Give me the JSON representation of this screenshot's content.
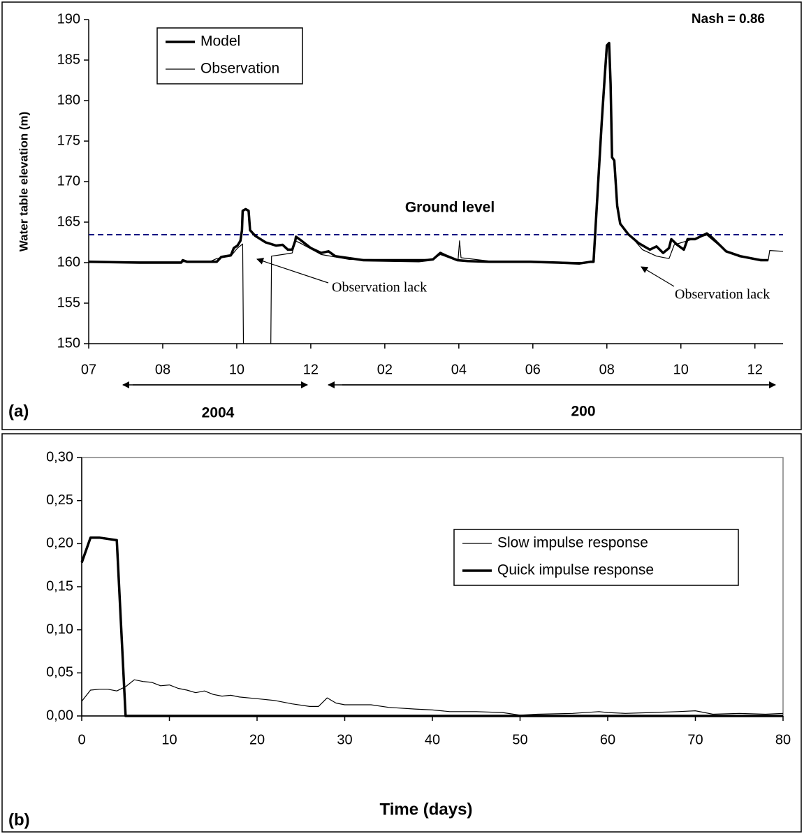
{
  "chart_data": [
    {
      "type": "line",
      "ylabel": "Water table elevation (m)",
      "ylim": [
        150,
        190
      ],
      "yticks": [
        150,
        155,
        160,
        165,
        170,
        175,
        180,
        185,
        190
      ],
      "xlim": [
        0,
        9.38
      ],
      "xticks": [
        {
          "value": 0,
          "label": "07"
        },
        {
          "value": 1,
          "label": "08"
        },
        {
          "value": 2,
          "label": "10"
        },
        {
          "value": 3,
          "label": "12"
        },
        {
          "value": 4,
          "label": "02"
        },
        {
          "value": 5,
          "label": "04"
        },
        {
          "value": 6,
          "label": "06"
        },
        {
          "value": 7,
          "label": "08"
        },
        {
          "value": 8,
          "label": "10"
        },
        {
          "value": 9,
          "label": "12"
        }
      ],
      "legend": "upper left",
      "frame": false,
      "series": [
        {
          "name": "Model",
          "color": "#000000",
          "line_style": "thick",
          "x": [
            0,
            0.69,
            1.25,
            1.27,
            1.33,
            1.73,
            1.79,
            1.92,
            1.96,
            2.01,
            2.05,
            2.07,
            2.08,
            2.12,
            2.16,
            2.18,
            2.25,
            2.39,
            2.53,
            2.62,
            2.69,
            2.75,
            2.79,
            2.8,
            2.86,
            3.0,
            3.14,
            3.24,
            3.33,
            3.71,
            4.46,
            4.65,
            4.75,
            4.82,
            4.98,
            5.12,
            5.41,
            5.97,
            6.35,
            6.63,
            6.78,
            6.82,
            6.93,
            6.97,
            7.0,
            7.03,
            7.05,
            7.07,
            7.1,
            7.14,
            7.18,
            7.29,
            7.43,
            7.58,
            7.67,
            7.76,
            7.84,
            7.87,
            7.95,
            8.04,
            8.09,
            8.19,
            8.35,
            8.42,
            8.61,
            8.8,
            9.08,
            9.18
          ],
          "values": [
            160.1,
            160.0,
            160.0,
            160.3,
            160.1,
            160.1,
            160.7,
            160.9,
            161.8,
            162.1,
            162.7,
            164.0,
            166.4,
            166.6,
            166.4,
            164.0,
            163.3,
            162.5,
            162.1,
            162.2,
            161.6,
            161.6,
            162.7,
            163.2,
            162.8,
            161.8,
            161.2,
            161.4,
            160.8,
            160.3,
            160.2,
            160.4,
            161.2,
            160.9,
            160.3,
            160.2,
            160.1,
            160.1,
            160.0,
            159.9,
            160.1,
            160.1,
            177.3,
            182.8,
            186.8,
            187.1,
            182.1,
            173.0,
            172.6,
            167.0,
            164.8,
            163.5,
            162.4,
            161.6,
            162.0,
            161.2,
            161.8,
            162.9,
            162.2,
            161.6,
            162.9,
            162.9,
            163.6,
            163.1,
            161.4,
            160.8,
            160.3,
            160.3
          ]
        },
        {
          "name": "Observation",
          "color": "#000000",
          "line_style": "thin",
          "x": [
            0,
            1.63,
            1.73,
            1.92,
            2.01,
            2.08,
            2.09,
            null,
            2.46,
            2.47,
            2.62,
            2.75,
            2.79,
            2.86,
            3.14,
            3.52,
            4.65,
            4.75,
            4.93,
            4.99,
            5.01,
            5.03,
            5.41,
            6.82,
            null,
            7.34,
            7.48,
            7.67,
            7.84,
            7.91,
            8.09,
            8.35,
            8.61,
            8.8,
            9.18,
            9.2,
            9.38
          ],
          "values": [
            160.1,
            160.1,
            160.5,
            160.8,
            161.8,
            162.3,
            150,
            null,
            150,
            160.8,
            161.0,
            161.2,
            162.7,
            162.4,
            161.0,
            160.4,
            160.4,
            161.0,
            160.4,
            160.4,
            162.7,
            160.6,
            160.2,
            160.0,
            null,
            163.1,
            161.6,
            160.8,
            160.5,
            162.2,
            162.7,
            163.4,
            161.4,
            160.7,
            160.3,
            161.5,
            161.4
          ]
        }
      ],
      "reference_line": {
        "value": 163.45,
        "label": "Ground level",
        "color": "#000080",
        "style": "dashed"
      },
      "annotations": {
        "nash": "Nash = 0.86",
        "lack": [
          "Observation lack",
          "Observation lack"
        ],
        "panel": "(a)",
        "years": [
          "2004",
          "200"
        ]
      }
    },
    {
      "type": "line",
      "xlabel": "Time (days)",
      "ylim": [
        0,
        0.3
      ],
      "yticks": [
        {
          "value": 0,
          "label": "0,00"
        },
        {
          "value": 0.05,
          "label": "0,05"
        },
        {
          "value": 0.1,
          "label": "0,10"
        },
        {
          "value": 0.15,
          "label": "0,15"
        },
        {
          "value": 0.2,
          "label": "0,20"
        },
        {
          "value": 0.25,
          "label": "0,25"
        },
        {
          "value": 0.3,
          "label": "0,30"
        }
      ],
      "xlim": [
        0,
        80
      ],
      "xticks": [
        0,
        10,
        20,
        30,
        40,
        50,
        60,
        70,
        80
      ],
      "legend": "right",
      "frame": true,
      "series": [
        {
          "name": "Slow impulse response",
          "color": "#000000",
          "line_style": "thin",
          "x": [
            0,
            1,
            2,
            3,
            4,
            5,
            6,
            7,
            8,
            9,
            10,
            11,
            12,
            13,
            14,
            15,
            16,
            17,
            18,
            20,
            22,
            24,
            26,
            27,
            28,
            29,
            30,
            33,
            35,
            38,
            40,
            42,
            45,
            48,
            50,
            52,
            56,
            59,
            60,
            62,
            65,
            68,
            70,
            72,
            75,
            78,
            80
          ],
          "values": [
            0.017,
            0.03,
            0.031,
            0.031,
            0.029,
            0.034,
            0.042,
            0.04,
            0.039,
            0.035,
            0.036,
            0.032,
            0.03,
            0.027,
            0.029,
            0.025,
            0.023,
            0.024,
            0.022,
            0.02,
            0.018,
            0.014,
            0.011,
            0.011,
            0.021,
            0.015,
            0.013,
            0.013,
            0.01,
            0.008,
            0.007,
            0.005,
            0.005,
            0.004,
            0.001,
            0.002,
            0.003,
            0.005,
            0.004,
            0.003,
            0.004,
            0.005,
            0.006,
            0.002,
            0.003,
            0.002,
            0.003
          ]
        },
        {
          "name": "Quick impulse response",
          "color": "#000000",
          "line_style": "thick",
          "x": [
            0,
            1,
            2,
            4,
            5,
            80
          ],
          "values": [
            0.178,
            0.207,
            0.207,
            0.204,
            0,
            0
          ]
        }
      ],
      "annotations": {
        "panel": "(b)"
      }
    }
  ]
}
